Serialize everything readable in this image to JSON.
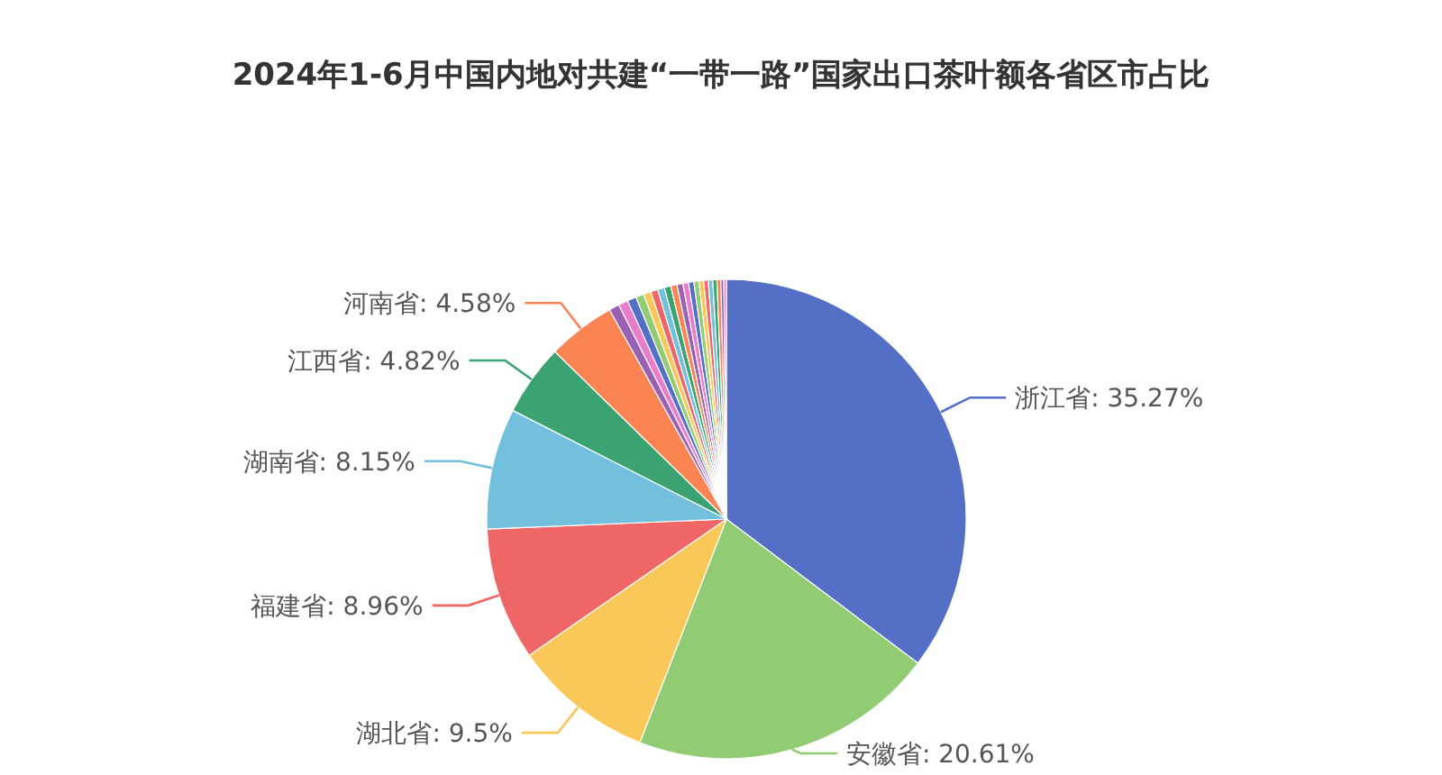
{
  "chart_data": {
    "type": "pie",
    "title": "2024年1-6月中国内地对共建“一带一路”国家出口茶叶额各省区市占比",
    "categories": [
      "浙江省",
      "安徽省",
      "湖北省",
      "福建省",
      "湖南省",
      "江西省",
      "河南省",
      null,
      null,
      null,
      null,
      null,
      null,
      null,
      null,
      null,
      null,
      null,
      null,
      null,
      null,
      null,
      null,
      null,
      null,
      null,
      null
    ],
    "values": [
      35.27,
      20.61,
      9.5,
      8.96,
      8.15,
      4.82,
      4.58,
      0.7,
      0.65,
      0.6,
      0.55,
      0.5,
      0.48,
      0.46,
      0.44,
      0.42,
      0.4,
      0.38,
      0.36,
      0.34,
      0.32,
      0.3,
      0.3,
      0.28,
      0.26,
      0.2,
      0.17
    ],
    "value_labels": [
      "35.27%",
      "20.61%",
      "9.5%",
      "8.96%",
      "8.15%",
      "4.82%",
      "4.58%",
      null,
      null,
      null,
      null,
      null,
      null,
      null,
      null,
      null,
      null,
      null,
      null,
      null,
      null,
      null,
      null,
      null,
      null,
      null,
      null
    ],
    "colors": [
      "#5470c6",
      "#91cc75",
      "#fac858",
      "#ee6666",
      "#73c0de",
      "#3ba272",
      "#fc8452",
      "#9a60b4",
      "#ea7ccc",
      "#5470c6",
      "#91cc75",
      "#fac858",
      "#ee6666",
      "#73c0de",
      "#3ba272",
      "#fc8452",
      "#9a60b4",
      "#ea7ccc",
      "#5470c6",
      "#91cc75",
      "#fac858",
      "#ee6666",
      "#73c0de",
      "#3ba272",
      "#fc8452",
      "#9a60b4",
      "#ea7ccc"
    ]
  }
}
